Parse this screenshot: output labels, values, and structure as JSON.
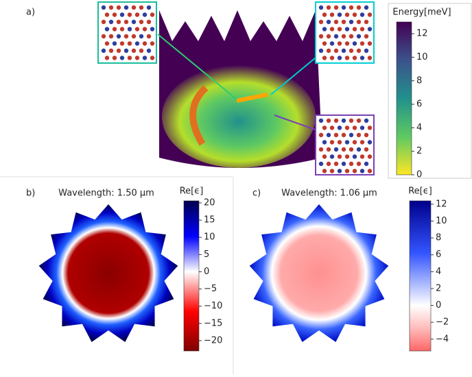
{
  "panels": [
    {
      "label": "a)",
      "colorbar": {
        "label": "Energy[meV]",
        "lim": [
          0,
          13
        ],
        "ticks": [
          0,
          2,
          4,
          6,
          8,
          10,
          12
        ],
        "colormap": [
          "#fde725",
          "#5ec962",
          "#21918c",
          "#3b528b",
          "#440154"
        ]
      }
    },
    {
      "label": "b)",
      "title": "Wavelength: 1.50 µm",
      "colorbar": {
        "label": "Re[ϵ]",
        "lim": [
          -23,
          20.6
        ],
        "ticks": [
          {
            "value": -20,
            "label": "−20"
          },
          {
            "value": -15,
            "label": "−15"
          },
          {
            "value": -10,
            "label": "−10"
          },
          {
            "value": -5,
            "label": "−5"
          },
          0,
          5,
          10,
          15,
          20
        ],
        "colormap": [
          "#7f0000",
          "#ff0000",
          "#ffffff",
          "#0000ff",
          "#00004d"
        ]
      }
    },
    {
      "label": "c)",
      "title": "Wavelength: 1.06 µm",
      "colorbar": {
        "label": "Re[ϵ]",
        "lim": [
          -5.4,
          12.4
        ],
        "ticks": [
          {
            "value": -4,
            "label": "−4"
          },
          {
            "value": -2,
            "label": "−2"
          },
          0,
          2,
          4,
          6,
          8,
          10,
          12
        ],
        "colormap": [
          "#ff6666",
          "#ffbbbb",
          "#ffffff",
          "#3355ff",
          "#00008b"
        ]
      }
    }
  ]
}
